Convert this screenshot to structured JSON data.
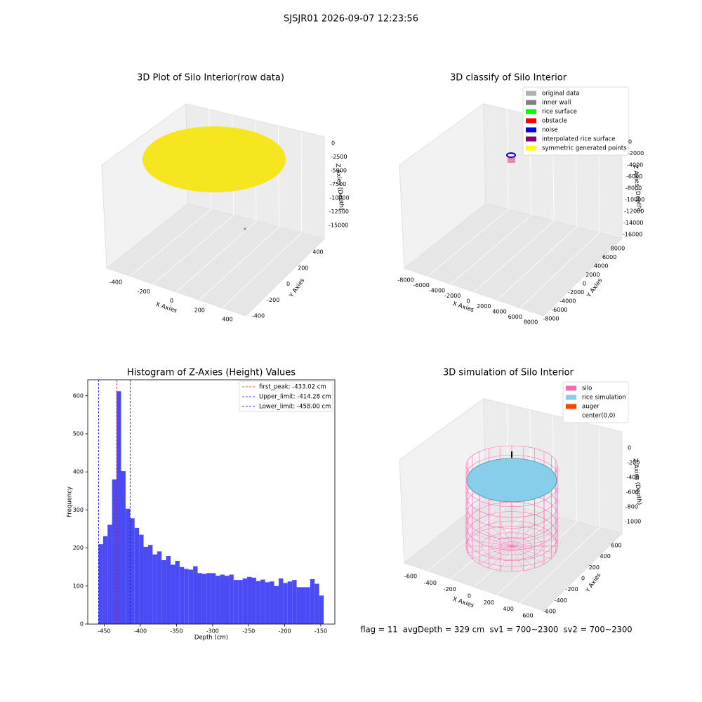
{
  "title": "SJSJR01 2026-09-07 12:23:56",
  "footer": "flag = 11  avgDepth = 329 cm  sv1 = 700~2300  sv2 = 700~2300",
  "chart_data": [
    {
      "type": "scatter3d",
      "title": "3D Plot of Silo Interior(row data)",
      "xlabel": "X Axies",
      "ylabel": "Y Axies",
      "zlabel": "Z Axies (Depth)",
      "xticks": [
        -400,
        -200,
        0,
        200,
        400
      ],
      "yticks": [
        -400,
        -200,
        0,
        200,
        400
      ],
      "zticks": [
        0,
        -2500,
        -5000,
        -7500,
        -10000,
        -12500,
        -15000
      ],
      "color": "#f5e61f"
    },
    {
      "type": "scatter3d",
      "title": "3D classify of Silo Interior",
      "xlabel": "X Axies",
      "ylabel": "Y Axies",
      "zlabel": "Z Axies (Depth)",
      "xticks": [
        -8000,
        -6000,
        -4000,
        -2000,
        0,
        2000,
        4000,
        6000,
        8000
      ],
      "yticks": [
        -8000,
        -6000,
        -4000,
        -2000,
        0,
        2000,
        4000,
        6000,
        8000
      ],
      "zticks": [
        0,
        -2000,
        -4000,
        -6000,
        -8000,
        -10000,
        -12000,
        -14000,
        -16000
      ],
      "legend": [
        {
          "name": "original data",
          "color": "#b0b0b0"
        },
        {
          "name": "inner wall",
          "color": "#808080"
        },
        {
          "name": "rice surface",
          "color": "#00ff00"
        },
        {
          "name": "obstacle",
          "color": "#ff0000"
        },
        {
          "name": "noise",
          "color": "#0000ff"
        },
        {
          "name": "interpolated rice surface",
          "color": "#800080"
        },
        {
          "name": "symmetric generated points",
          "color": "#ffff00"
        }
      ]
    },
    {
      "type": "histogram",
      "title": "Histogram of Z-Axies (Height) Values",
      "xlabel": "Depth (cm)",
      "ylabel": "Frequency",
      "color": "#4b4bf5",
      "bins": [
        -458,
        -451.76,
        -445.52,
        -439.28,
        -433.04,
        -426.8,
        -420.56,
        -414.32,
        -408.08,
        -401.84,
        -395.6,
        -389.36,
        -383.12,
        -376.88,
        -370.64,
        -364.4,
        -358.16,
        -351.92,
        -345.68,
        -339.44,
        -333.2,
        -326.96,
        -320.72,
        -314.48,
        -308.24,
        -302,
        -295.76,
        -289.52,
        -283.28,
        -277.04,
        -270.8,
        -264.56,
        -258.32,
        -252.08,
        -245.84,
        -239.6,
        -233.36,
        -227.12,
        -220.88,
        -214.64,
        -208.4,
        -202.16,
        -195.92,
        -189.68,
        -183.44,
        -177.2,
        -170.96,
        -164.72,
        -158.48,
        -152.24,
        -146
      ],
      "values": [
        210,
        231,
        261,
        380,
        612,
        402,
        303,
        278,
        253,
        235,
        203,
        208,
        183,
        191,
        168,
        179,
        156,
        166,
        150,
        145,
        143,
        152,
        134,
        132,
        134,
        134,
        127,
        130,
        127,
        130,
        116,
        116,
        120,
        124,
        122,
        113,
        117,
        110,
        112,
        100,
        120,
        108,
        112,
        116,
        97,
        97,
        97,
        118,
        106,
        75
      ],
      "xlim": [
        -473,
        -130.5
      ],
      "ylim": [
        0,
        642
      ],
      "xticks": [
        -450,
        -400,
        -350,
        -300,
        -250,
        -200,
        -150
      ],
      "yticks": [
        0,
        100,
        200,
        300,
        400,
        500,
        600
      ],
      "vlines": [
        {
          "label": "first_peak: -433.02 cm",
          "value": -433.02,
          "color": "#ff0000"
        },
        {
          "label": "Upper_limit: -414.28 cm",
          "value": -414.28,
          "color": "#0000ff"
        },
        {
          "label": "Lower_limit: -458.00 cm",
          "value": -458.0,
          "color": "#0000ff"
        }
      ]
    },
    {
      "type": "simulation3d",
      "title": "3D simulation of Silo Interior",
      "xlabel": "X Axies",
      "ylabel": "Y Axies",
      "zlabel": "Z Axies (Depth)",
      "xticks": [
        -600,
        -400,
        -200,
        0,
        200,
        400,
        600
      ],
      "yticks": [
        -600,
        -400,
        -200,
        0,
        200,
        400,
        600
      ],
      "zticks": [
        0,
        -200,
        -400,
        -600,
        -800,
        -1000
      ],
      "legend": [
        {
          "name": "silo",
          "color": "#ff69b4"
        },
        {
          "name": "rice simulation",
          "color": "#87ceeb"
        },
        {
          "name": "auger",
          "color": "#ff4500"
        },
        {
          "name": "center(0,0)",
          "color": "#ffffff"
        }
      ]
    }
  ]
}
